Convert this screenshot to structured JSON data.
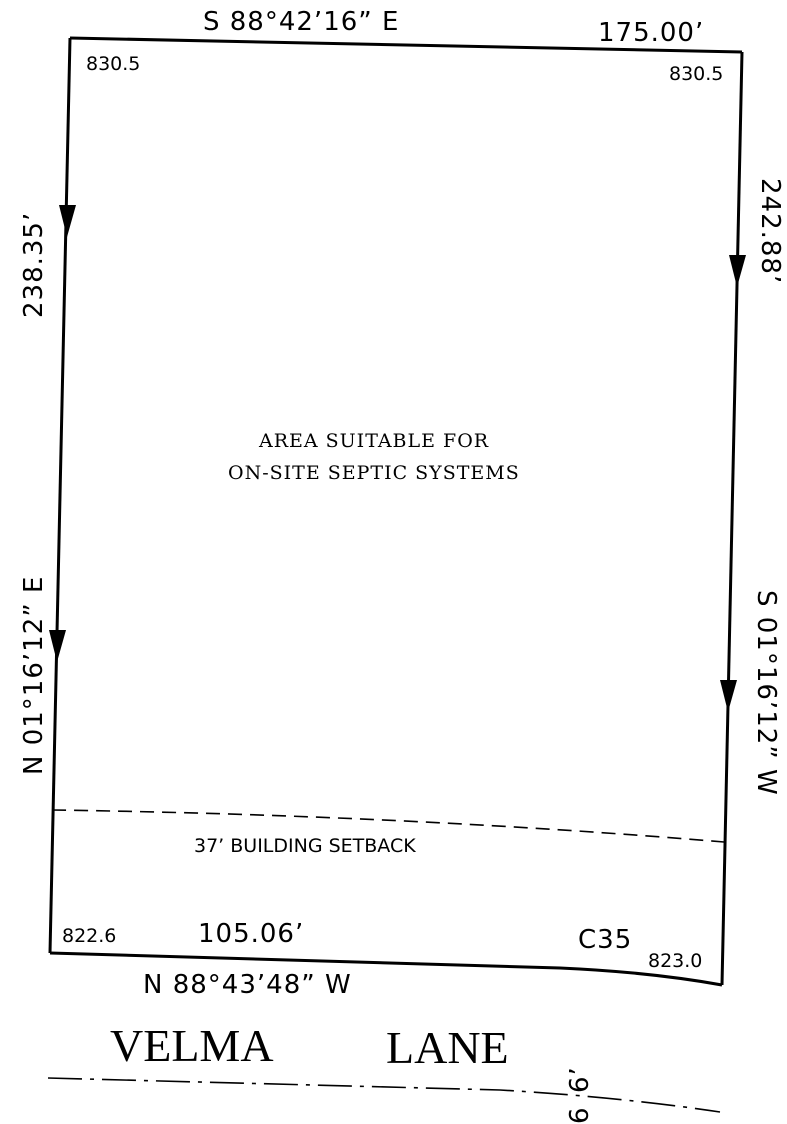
{
  "boundary": {
    "north_bearing": "S 88°42’16” E",
    "north_distance": "175.00’",
    "east_distance": "242.88’",
    "east_bearing": "S 01°16’12” W",
    "west_distance": "238.35’",
    "west_bearing": "N 01°16’12” E",
    "south_distance": "105.06’",
    "south_bearing": "N 88°43’48” W",
    "curve_label": "C35"
  },
  "elevations": {
    "nw": "830.5",
    "ne": "830.5",
    "sw": "822.6",
    "se": "823.0"
  },
  "notes": {
    "septic_line1": "AREA SUITABLE FOR",
    "septic_line2": "ON-SITE SEPTIC SYSTEMS",
    "setback": "37’ BUILDING SETBACK"
  },
  "street": {
    "word1": "VELMA",
    "word2": "LANE",
    "dim_a": "6’",
    "dim_b": "6"
  }
}
